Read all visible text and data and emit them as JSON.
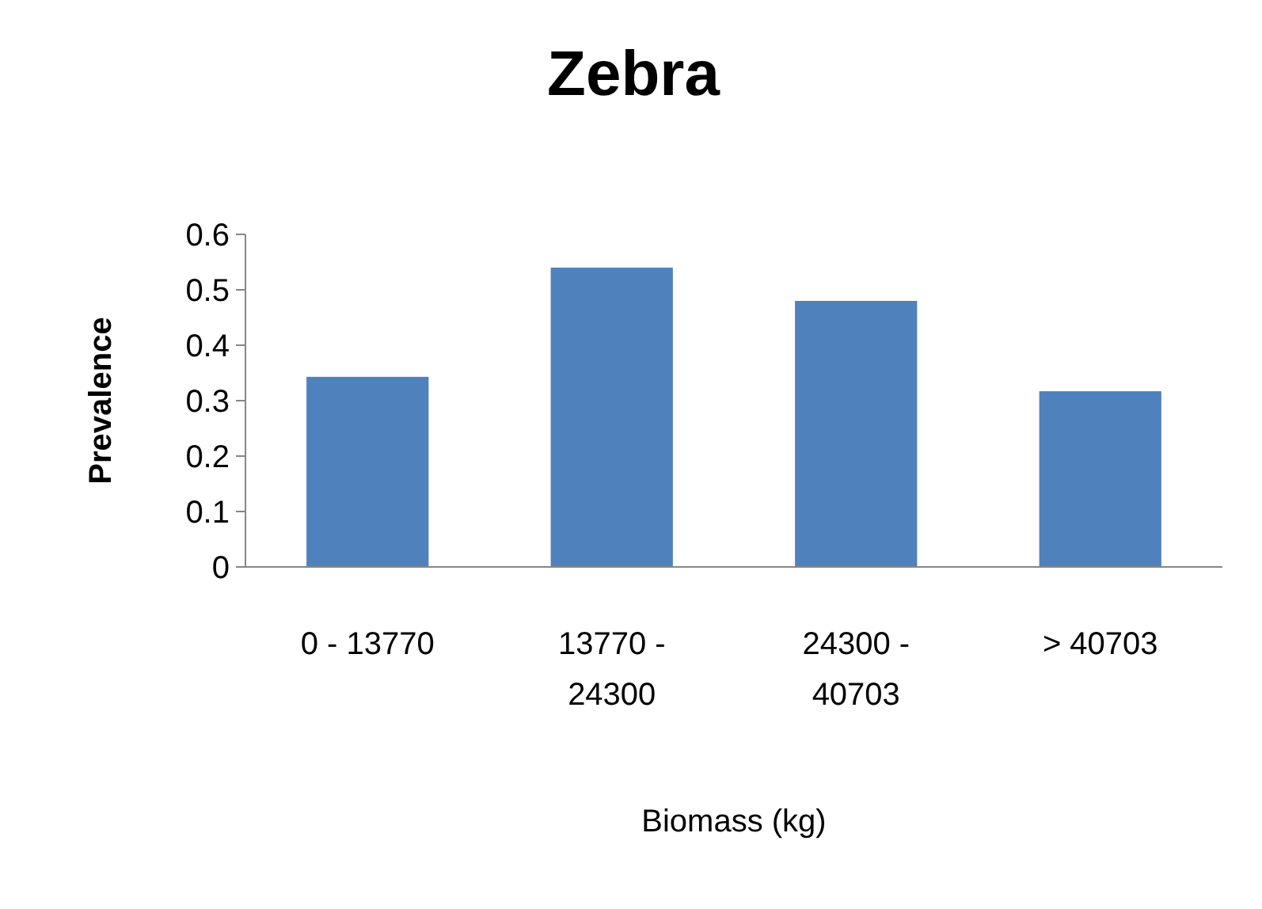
{
  "chart_data": {
    "type": "bar",
    "title": "Zebra",
    "xlabel": "Biomass (kg)",
    "ylabel": "Prevalence",
    "categories": [
      "0 - 13770",
      "13770 - 24300",
      "24300 - 40703",
      "> 40703"
    ],
    "values": [
      0.343,
      0.54,
      0.48,
      0.317
    ],
    "color": "#4f81bd",
    "ylim": [
      0,
      0.6
    ],
    "yticks": [
      0,
      0.1,
      0.2,
      0.3,
      0.4,
      0.5,
      0.6
    ],
    "grid": false
  }
}
